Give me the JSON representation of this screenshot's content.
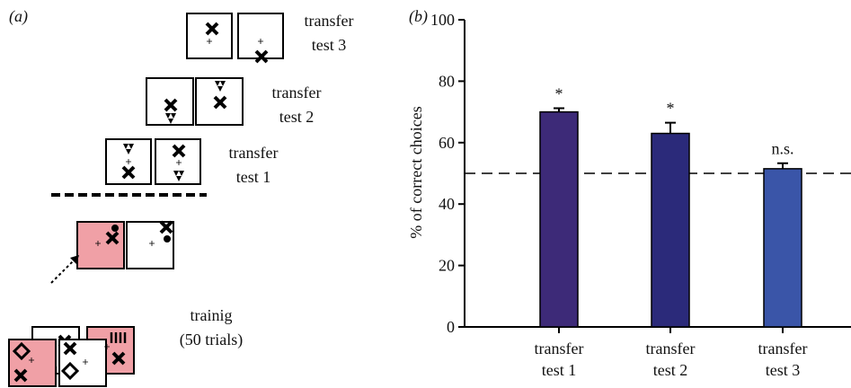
{
  "panel_a": {
    "label": "(a)",
    "labels": [
      {
        "lines": [
          "transfer",
          "test 3"
        ]
      },
      {
        "lines": [
          "transfer",
          "test 2"
        ]
      },
      {
        "lines": [
          "transfer",
          "test 1"
        ]
      },
      {
        "lines": [
          "trainig",
          "(50 trials)"
        ]
      }
    ]
  },
  "chart_data": {
    "type": "bar",
    "panel_label": "(b)",
    "ylabel": "% of correct choices",
    "categories": [
      "transfer test 1",
      "transfer test 2",
      "transfer test 3"
    ],
    "values": [
      70,
      63,
      51.5
    ],
    "errors": [
      1.2,
      3.5,
      1.8
    ],
    "annotations": [
      "*",
      "*",
      "n.s."
    ],
    "colors": [
      "#3d2a78",
      "#2b2a7a",
      "#3a55a8"
    ],
    "hline": 50,
    "ylim": [
      0,
      100
    ],
    "yticks": [
      0,
      20,
      40,
      60,
      80,
      100
    ]
  }
}
